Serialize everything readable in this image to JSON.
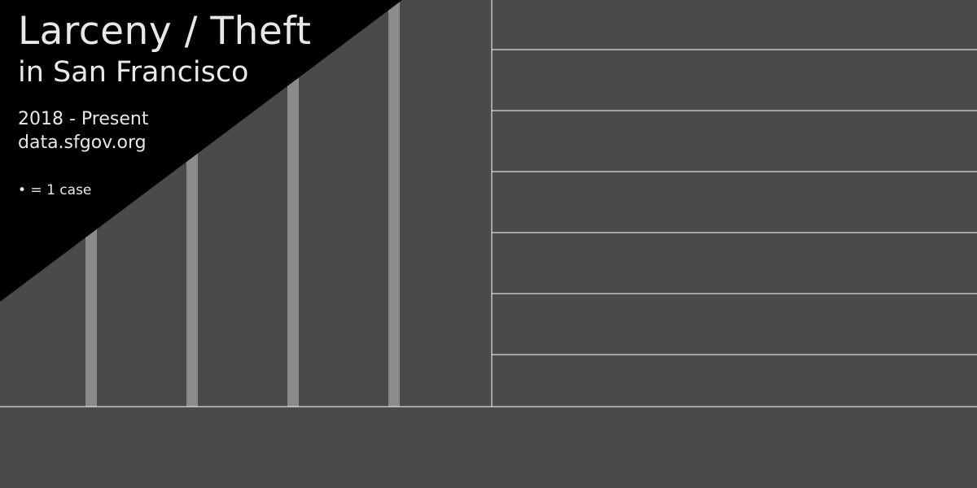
{
  "colors": {
    "background": "#4a4a4a",
    "title_panel": "#000000",
    "bar": "#8c8c8c",
    "grid": "#ffffff",
    "text": "#e8e8e8"
  },
  "header": {
    "title": "Larceny / Theft",
    "subtitle": "in San Francisco",
    "date_range": "2018 - Present",
    "source": "data.sfgov.org",
    "legend": "• = 1 case"
  },
  "chart_data": {
    "type": "bar",
    "title": "Larceny / Theft",
    "subtitle": "in San Francisco",
    "categories": [
      "",
      "",
      "",
      ""
    ],
    "values": [
      1,
      1,
      1,
      1
    ],
    "legend": [
      "• = 1 case"
    ],
    "grid": true
  }
}
